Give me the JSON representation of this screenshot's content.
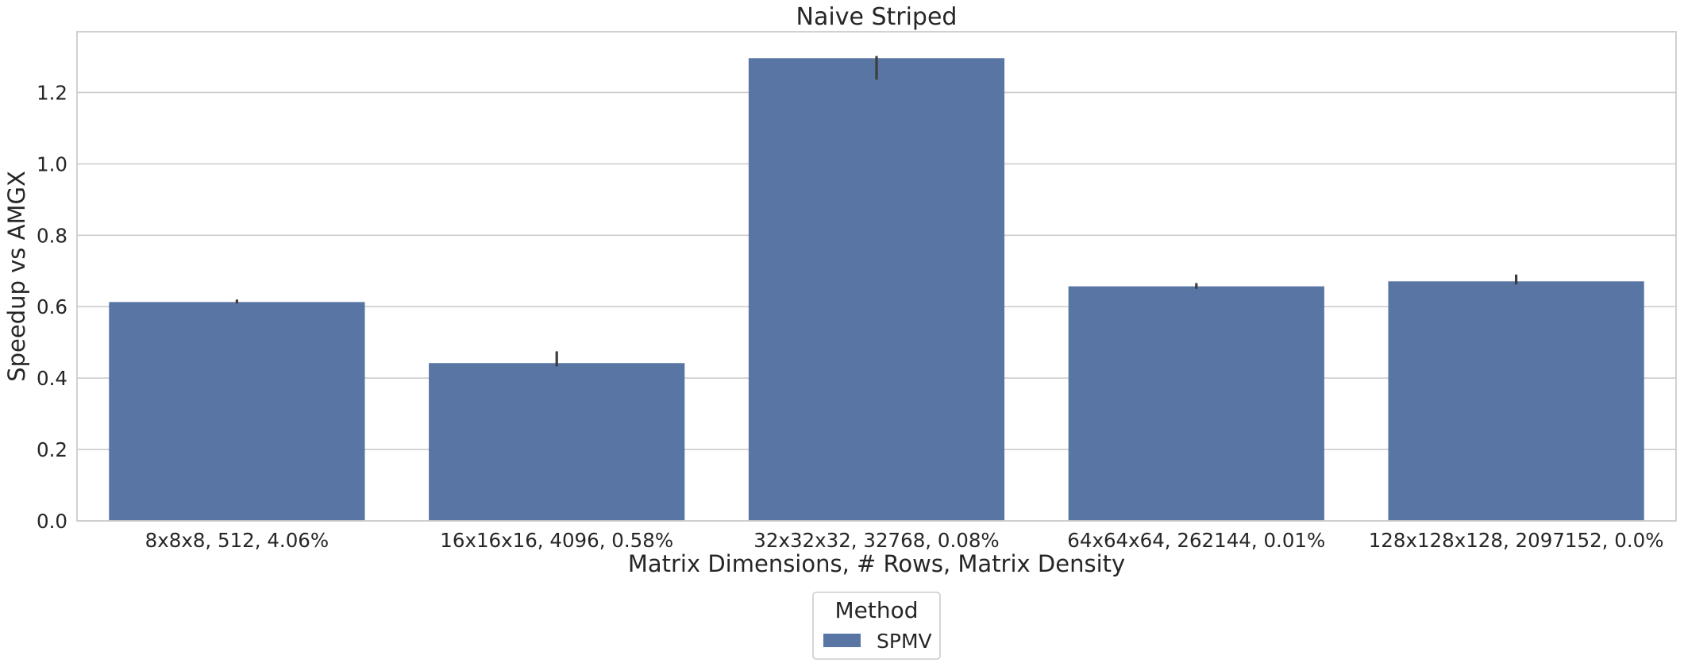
{
  "chart_data": {
    "type": "bar",
    "title": "Naive Striped",
    "xlabel": "Matrix Dimensions, # Rows, Matrix Density",
    "ylabel": "Speedup vs AMGX",
    "categories": [
      "8x8x8, 512, 4.06%",
      "16x16x16, 4096, 0.58%",
      "32x32x32, 32768, 0.08%",
      "64x64x64, 262144, 0.01%",
      "128x128x128, 2097152, 0.0%"
    ],
    "series": [
      {
        "name": "SPMV",
        "color": "#5975a4",
        "values": [
          0.613,
          0.442,
          1.296,
          0.657,
          0.671
        ],
        "error_low": [
          0.609,
          0.433,
          1.236,
          0.65,
          0.662
        ],
        "error_high": [
          0.62,
          0.475,
          1.302,
          0.666,
          0.69
        ]
      }
    ],
    "ylim": [
      0,
      1.37
    ],
    "yticks": [
      0.0,
      0.2,
      0.4,
      0.6,
      0.8,
      1.0,
      1.2
    ],
    "ytick_labels": [
      "0.0",
      "0.2",
      "0.4",
      "0.6",
      "0.8",
      "1.0",
      "1.2"
    ],
    "grid": "horizontal",
    "legend": {
      "title": "Method",
      "placement": "bottom-center",
      "entries": [
        "SPMV"
      ]
    }
  }
}
